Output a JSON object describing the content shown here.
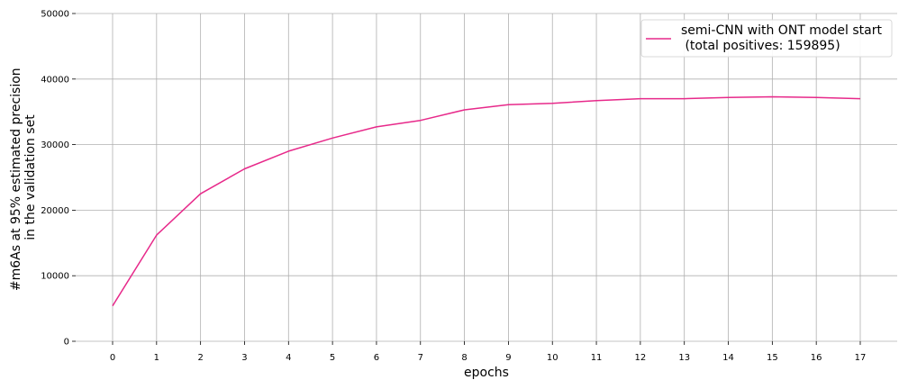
{
  "chart_data": {
    "type": "line",
    "xlabel": "epochs",
    "ylabel_lines": [
      "#m6As at 95% estimated precision",
      "in the validation set"
    ],
    "x": [
      0,
      1,
      2,
      3,
      4,
      5,
      6,
      7,
      8,
      9,
      10,
      11,
      12,
      13,
      14,
      15,
      16,
      17
    ],
    "ylim": [
      0,
      50000
    ],
    "yticks": [
      0,
      10000,
      20000,
      30000,
      40000,
      50000
    ],
    "xticks": [
      0,
      1,
      2,
      3,
      4,
      5,
      6,
      7,
      8,
      9,
      10,
      11,
      12,
      13,
      14,
      15,
      16,
      17
    ],
    "grid": true,
    "legend_position": "top-right",
    "series": [
      {
        "name_lines": [
          "semi-CNN with ONT model start",
          " (total positives: 159895)"
        ],
        "color": "#e7298a",
        "values": [
          5400,
          16200,
          22500,
          26300,
          29000,
          31000,
          32700,
          33700,
          35300,
          36100,
          36300,
          36700,
          37000,
          37000,
          37200,
          37300,
          37200,
          37000
        ]
      }
    ]
  }
}
